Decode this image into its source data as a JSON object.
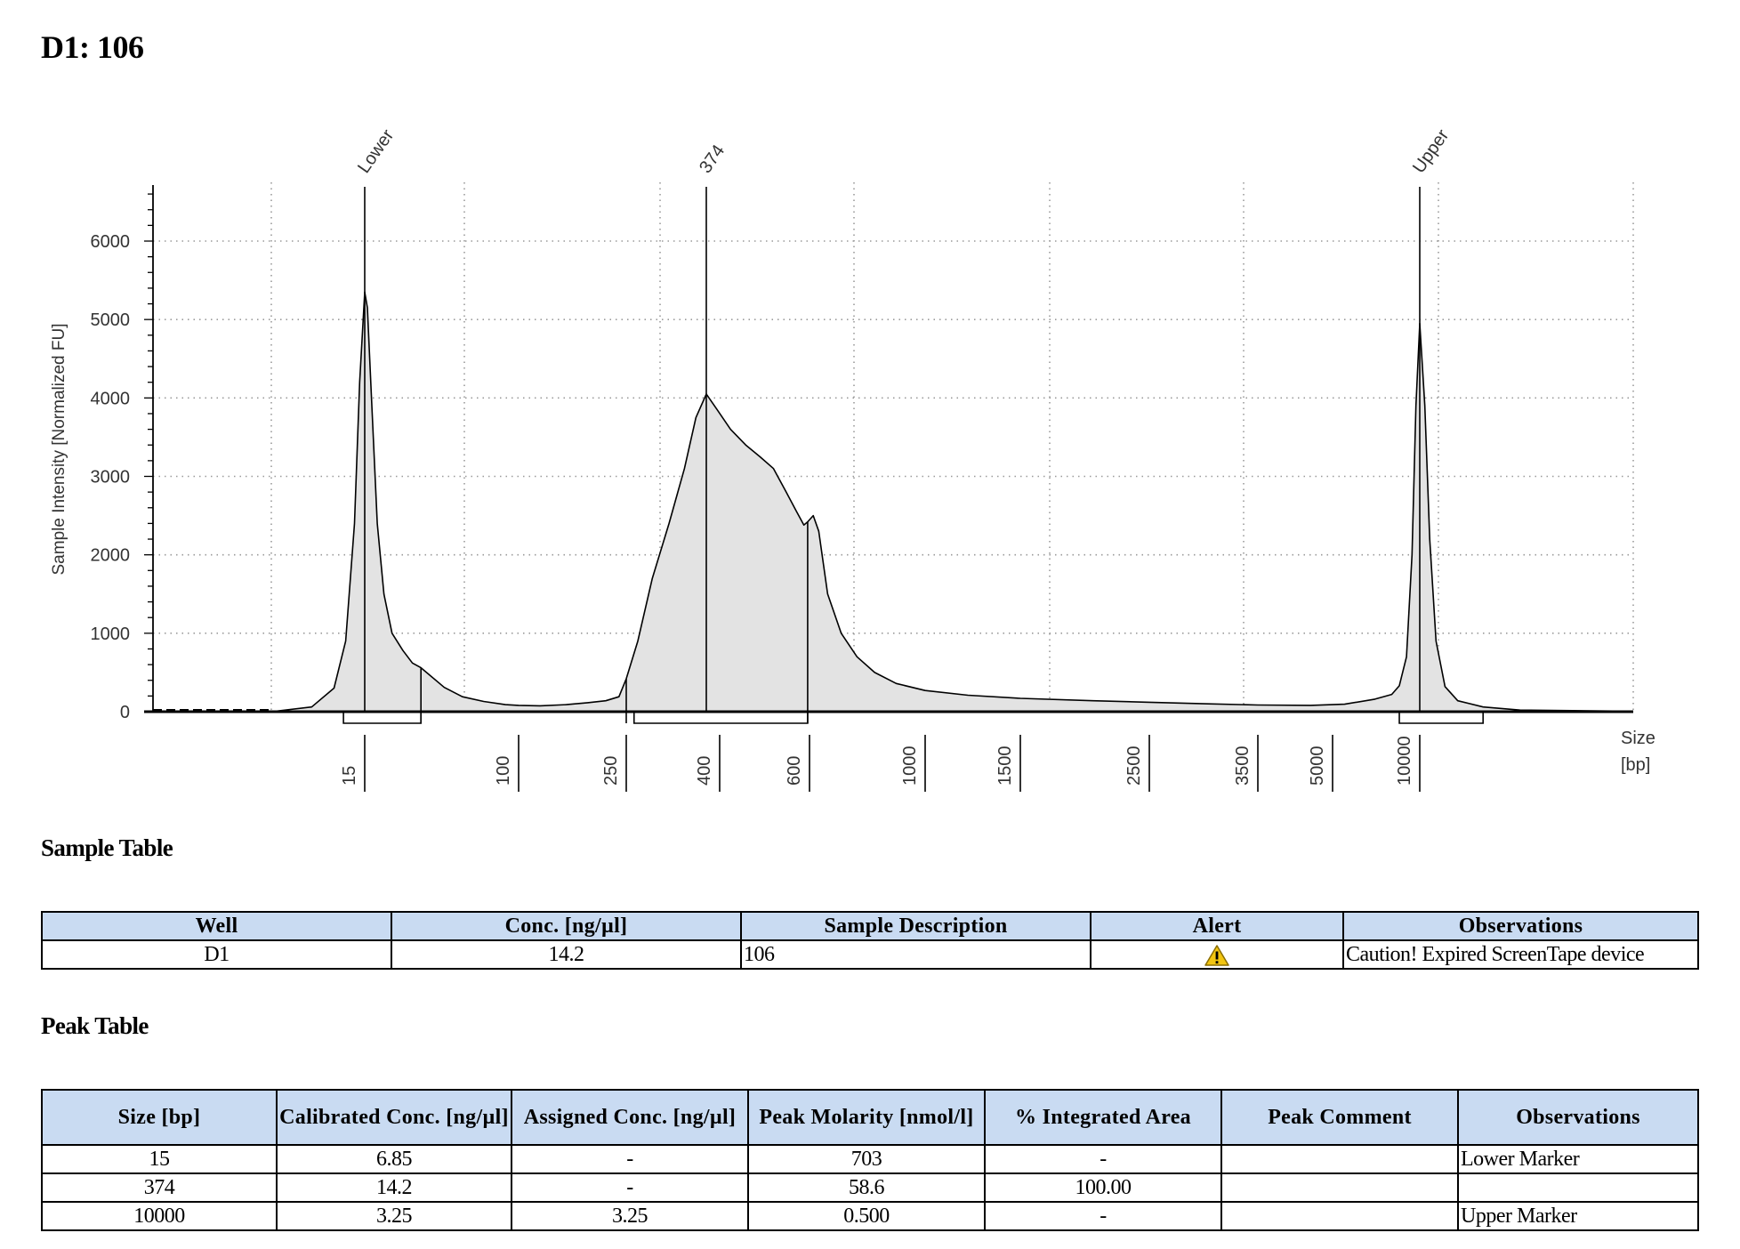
{
  "title": "D1: 106",
  "chart_data": {
    "type": "area",
    "ylabel": "Sample Intensity [Normalized FU]",
    "xlabel": "Size\n[bp]",
    "xlabel_lines": [
      "Size",
      "[bp]"
    ],
    "ylim": [
      0,
      6700
    ],
    "y_ticks": [
      0,
      1000,
      2000,
      3000,
      4000,
      5000,
      6000
    ],
    "y_tick_labels": [
      "0",
      "1000",
      "2000",
      "3000",
      "4000",
      "5000",
      "6000"
    ],
    "x_ticks": [
      15,
      100,
      250,
      400,
      600,
      1000,
      1500,
      2500,
      3500,
      5000,
      10000
    ],
    "x_tick_labels": [
      "15",
      "100",
      "250",
      "400",
      "600",
      "1000",
      "1500",
      "2500",
      "3500",
      "5000",
      "10000"
    ],
    "grid": true,
    "peak_labels": [
      {
        "label": "Lower",
        "size": 15
      },
      {
        "label": "374",
        "size": 374
      },
      {
        "label": "Upper",
        "size": 10000
      }
    ],
    "region_brackets": [
      {
        "from": 13,
        "to": 30,
        "level": 0
      },
      {
        "from": 260,
        "to": 595,
        "level": 0
      },
      {
        "from": 8500,
        "to": 14500,
        "level": 0
      }
    ],
    "region_cuts": [
      {
        "size": 30,
        "y": 560
      },
      {
        "size": 250,
        "y": 420
      },
      {
        "size": 595,
        "y": 2420
      }
    ],
    "series": [
      {
        "values": [
          [
            4,
            0
          ],
          [
            8,
            0
          ],
          [
            10.5,
            60
          ],
          [
            12.2,
            300
          ],
          [
            13.2,
            900
          ],
          [
            14,
            2400
          ],
          [
            14.5,
            4200
          ],
          [
            15,
            5350
          ],
          [
            15.5,
            5150
          ],
          [
            16.3,
            4000
          ],
          [
            17.5,
            2400
          ],
          [
            19,
            1500
          ],
          [
            21,
            1000
          ],
          [
            24,
            780
          ],
          [
            27,
            620
          ],
          [
            30,
            560
          ],
          [
            40,
            310
          ],
          [
            50,
            190
          ],
          [
            65,
            130
          ],
          [
            85,
            90
          ],
          [
            100,
            80
          ],
          [
            120,
            75
          ],
          [
            150,
            90
          ],
          [
            180,
            115
          ],
          [
            210,
            140
          ],
          [
            235,
            190
          ],
          [
            250,
            420
          ],
          [
            265,
            900
          ],
          [
            285,
            1700
          ],
          [
            310,
            2400
          ],
          [
            335,
            3100
          ],
          [
            355,
            3750
          ],
          [
            374,
            4050
          ],
          [
            395,
            3850
          ],
          [
            420,
            3600
          ],
          [
            450,
            3400
          ],
          [
            480,
            3250
          ],
          [
            510,
            3100
          ],
          [
            540,
            2800
          ],
          [
            565,
            2560
          ],
          [
            585,
            2380
          ],
          [
            595,
            2420
          ],
          [
            610,
            2500
          ],
          [
            625,
            2300
          ],
          [
            650,
            1500
          ],
          [
            690,
            1000
          ],
          [
            740,
            700
          ],
          [
            800,
            500
          ],
          [
            880,
            360
          ],
          [
            1000,
            270
          ],
          [
            1200,
            210
          ],
          [
            1500,
            170
          ],
          [
            2000,
            140
          ],
          [
            2500,
            120
          ],
          [
            3000,
            100
          ],
          [
            3500,
            85
          ],
          [
            4500,
            80
          ],
          [
            5500,
            95
          ],
          [
            7000,
            160
          ],
          [
            8000,
            220
          ],
          [
            8500,
            330
          ],
          [
            9000,
            700
          ],
          [
            9400,
            2000
          ],
          [
            9700,
            3900
          ],
          [
            10000,
            4950
          ],
          [
            10300,
            3900
          ],
          [
            10600,
            2200
          ],
          [
            11000,
            900
          ],
          [
            11600,
            320
          ],
          [
            12500,
            140
          ],
          [
            14500,
            60
          ],
          [
            18000,
            20
          ],
          [
            35000,
            5
          ]
        ]
      }
    ]
  },
  "sample_table": {
    "title": "Sample Table",
    "headers": [
      "Well",
      "Conc. [ng/µl]",
      "Sample Description",
      "Alert",
      "Observations"
    ],
    "rows": [
      [
        "D1",
        "14.2",
        "106",
        "warning-icon",
        "Caution! Expired ScreenTape device"
      ]
    ]
  },
  "peak_table": {
    "title": "Peak Table",
    "headers": [
      "Size [bp]",
      "Calibrated Conc. [ng/µl]",
      "Assigned Conc. [ng/µl]",
      "Peak Molarity [nmol/l]",
      "% Integrated Area",
      "Peak Comment",
      "Observations"
    ],
    "rows": [
      [
        "15",
        "6.85",
        "-",
        "703",
        "-",
        "",
        "Lower Marker"
      ],
      [
        "374",
        "14.2",
        "-",
        "58.6",
        "100.00",
        "",
        ""
      ],
      [
        "10000",
        "3.25",
        "3.25",
        "0.500",
        "-",
        "",
        "Upper Marker"
      ]
    ]
  },
  "colors": {
    "fill": "#e3e3e3",
    "trace": "#000000",
    "grid": "#9a9a9a",
    "header": "#c9dbf2",
    "warning": "#f2c511"
  }
}
